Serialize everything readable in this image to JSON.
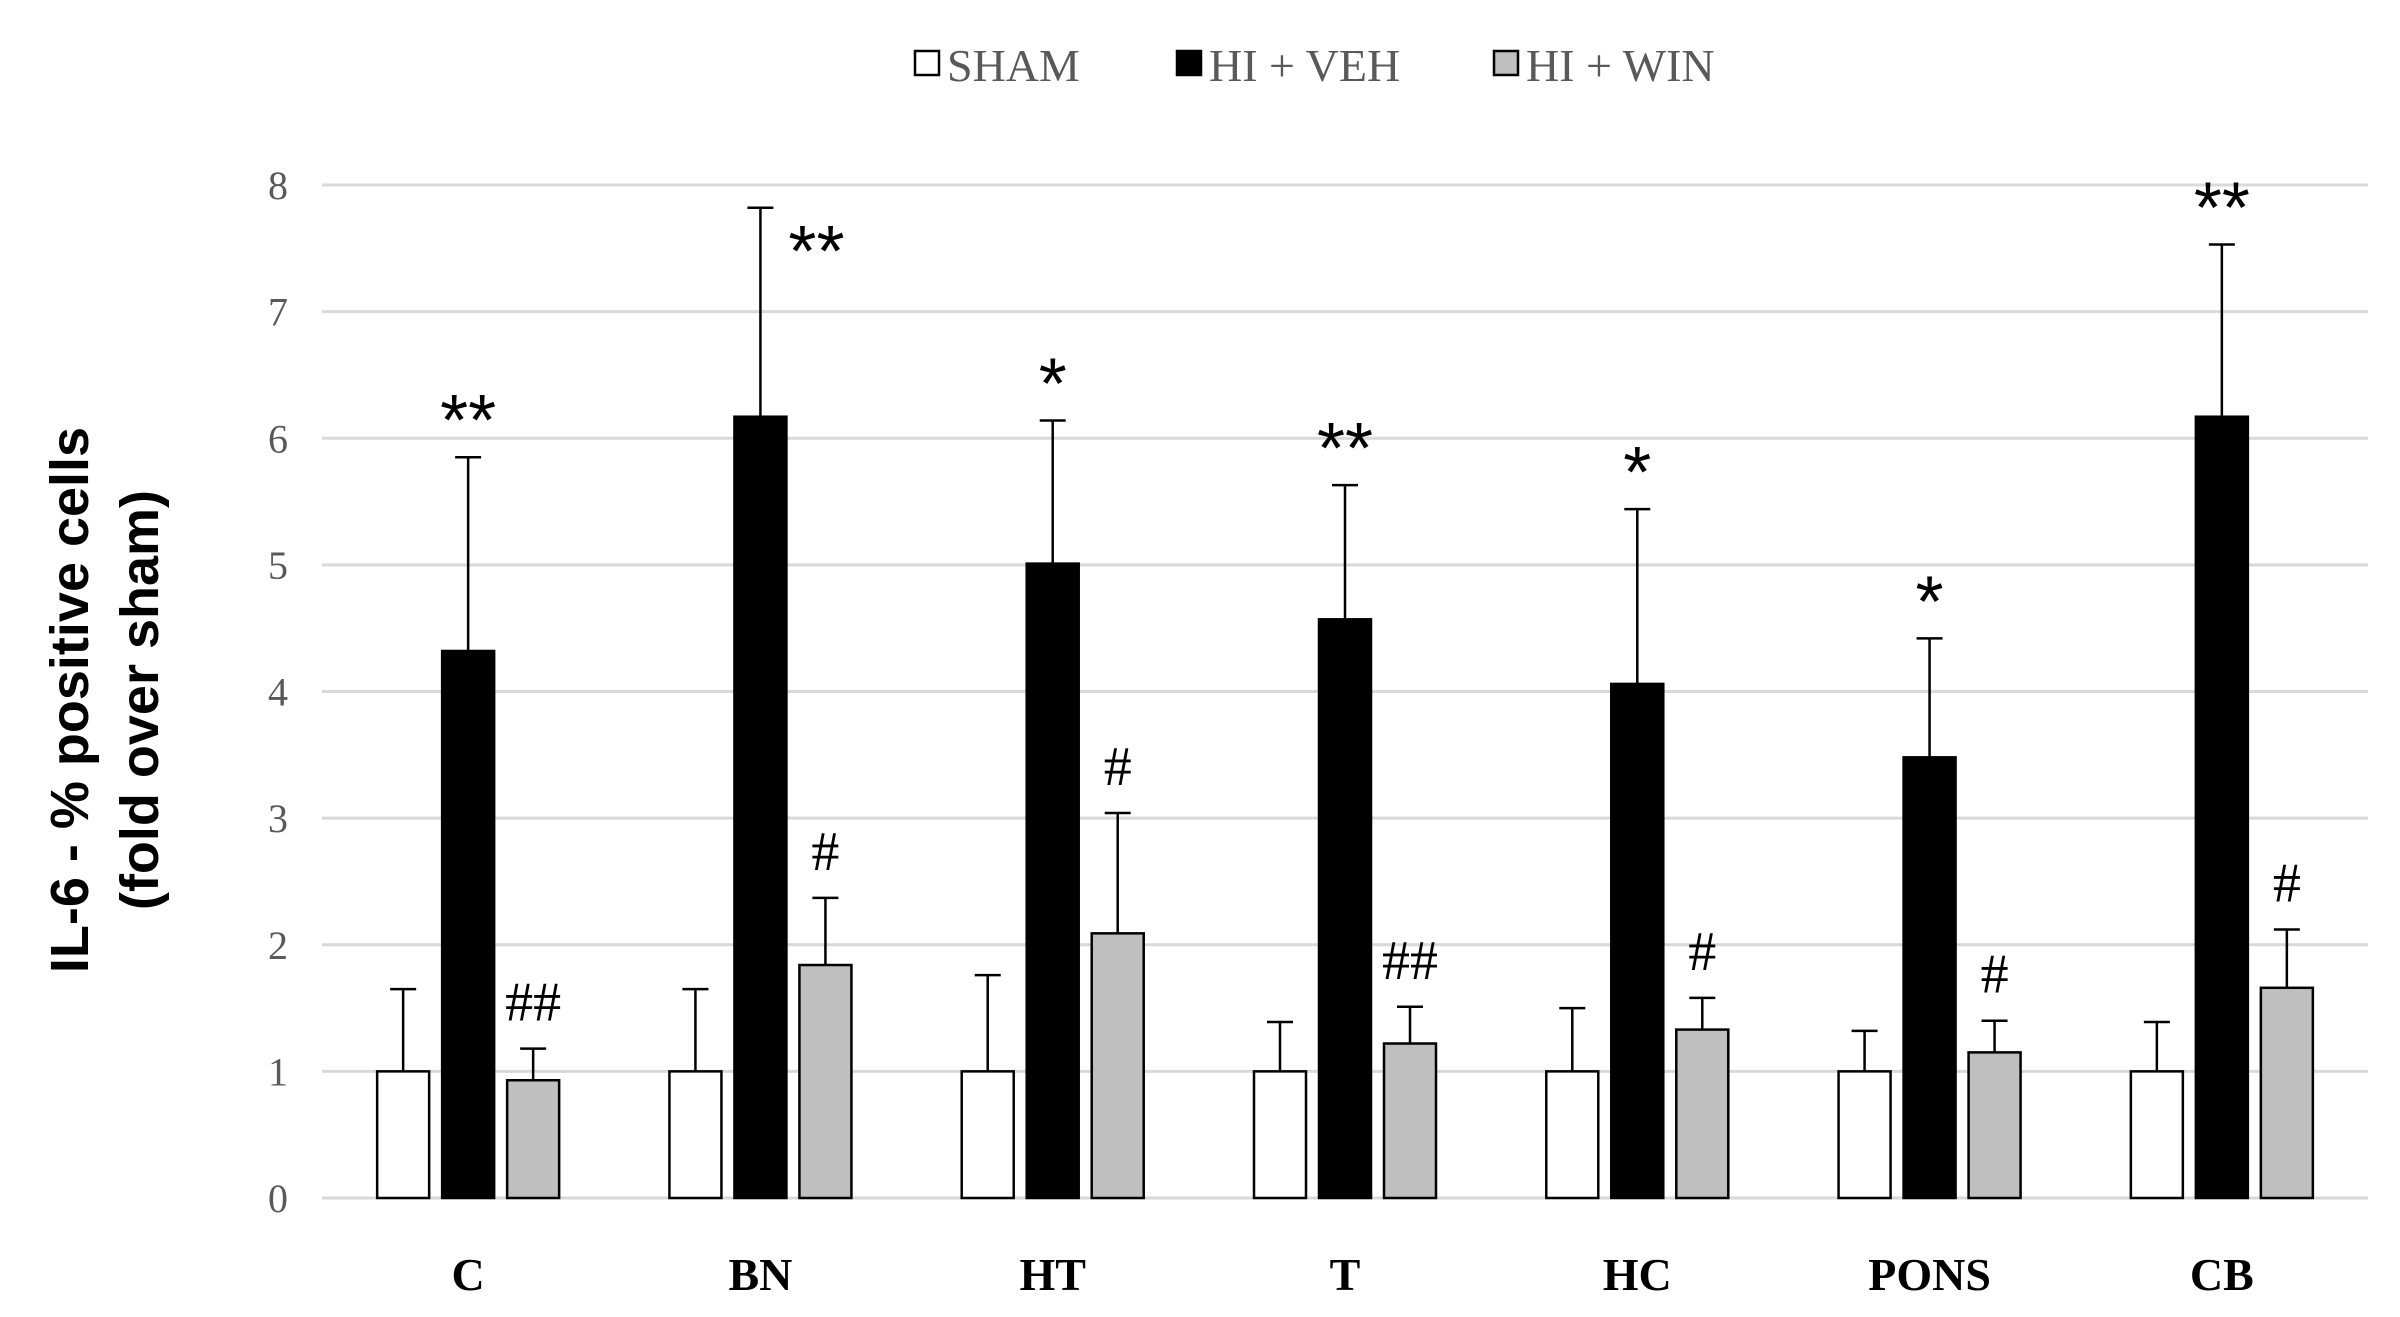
{
  "chart_data": {
    "type": "bar",
    "title": "",
    "xlabel": "",
    "ylabel_lines": [
      "IL-6  - % positive cells",
      "(fold over sham)"
    ],
    "ylim": [
      0,
      8
    ],
    "yticks": [
      0,
      1,
      2,
      3,
      4,
      5,
      6,
      7,
      8
    ],
    "grid": true,
    "legend_position": "top",
    "categories": [
      "C",
      "BN",
      "HT",
      "T",
      "HC",
      "PONS",
      "CB"
    ],
    "series": [
      {
        "name": "SHAM",
        "color": "#ffffff",
        "values": [
          1.0,
          1.0,
          1.0,
          1.0,
          1.0,
          1.0,
          1.0
        ],
        "errors": [
          0.65,
          0.65,
          0.76,
          0.39,
          0.5,
          0.32,
          0.39
        ],
        "annotations": [
          "",
          "",
          "",
          "",
          "",
          "",
          ""
        ]
      },
      {
        "name": "HI + VEH",
        "color": "#000000",
        "values": [
          4.32,
          6.17,
          5.01,
          4.57,
          4.06,
          3.48,
          6.17
        ],
        "errors": [
          1.53,
          1.65,
          1.13,
          1.06,
          1.38,
          0.94,
          1.36
        ],
        "annotations": [
          "**",
          "**",
          "*",
          "**",
          "*",
          "*",
          "**"
        ]
      },
      {
        "name": "HI + WIN",
        "color": "#bfbfbf",
        "values": [
          0.93,
          1.84,
          2.09,
          1.22,
          1.33,
          1.15,
          1.66
        ],
        "errors": [
          0.25,
          0.53,
          0.95,
          0.29,
          0.25,
          0.25,
          0.46
        ],
        "annotations": [
          "##",
          "#",
          "#",
          "##",
          "#",
          "#",
          "#"
        ]
      }
    ]
  }
}
